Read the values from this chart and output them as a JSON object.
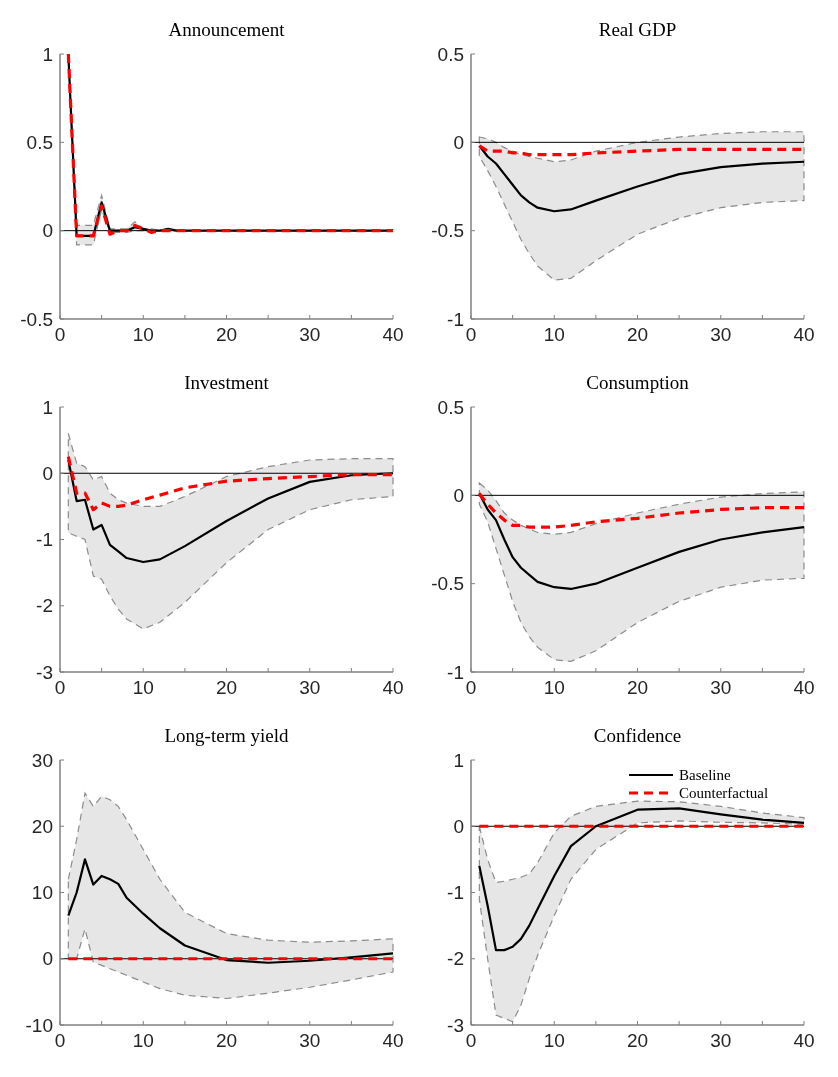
{
  "chart_data": [
    {
      "type": "line",
      "title": "Announcement",
      "xlim": [
        0,
        40
      ],
      "ylim": [
        -0.5,
        1
      ],
      "xticks": [
        0,
        {
          "value": 5,
          "label": null
        },
        10,
        {
          "value": 15,
          "label": null
        },
        20,
        {
          "value": 25,
          "label": null
        },
        30,
        {
          "value": 35,
          "label": null
        },
        40
      ],
      "yticks": [
        -0.5,
        0,
        0.5,
        1
      ],
      "legend": false,
      "ref_lines": [
        {
          "axis": "y",
          "value": 0,
          "color": "#000000"
        }
      ],
      "x": [
        1,
        2,
        3,
        4,
        5,
        6,
        7,
        8,
        9,
        10,
        11,
        12,
        13,
        14,
        15,
        20,
        25,
        30,
        35,
        40
      ],
      "series": [
        {
          "color": "#000000",
          "line_style": "solid",
          "values": [
            1,
            -0.03,
            -0.03,
            -0.03,
            0.16,
            0,
            0,
            0,
            0.02,
            0.01,
            0,
            0,
            0.01,
            0,
            0,
            0,
            0,
            0,
            0,
            0
          ],
          "lower": [
            1,
            -0.08,
            -0.08,
            -0.08,
            0.12,
            -0.01,
            -0.01,
            -0.01,
            0,
            0,
            0,
            0,
            0,
            0,
            0,
            0,
            0,
            0,
            0,
            0
          ],
          "upper": [
            1,
            0.03,
            0.03,
            0.03,
            0.2,
            0.01,
            0.01,
            0.01,
            0.05,
            0.01,
            0.01,
            0,
            0.01,
            0,
            0,
            0,
            0,
            0,
            0,
            0
          ]
        },
        {
          "color": "#ff0000",
          "line_style": "dashed",
          "values": [
            1,
            -0.03,
            -0.03,
            -0.03,
            0.14,
            -0.02,
            0,
            0,
            0.03,
            0.01,
            -0.01,
            0,
            0,
            0,
            0,
            0,
            0,
            0,
            0,
            0
          ]
        }
      ]
    },
    {
      "type": "line",
      "title": "Real GDP",
      "xlim": [
        0,
        40
      ],
      "ylim": [
        -1,
        0.5
      ],
      "xticks": [
        0,
        {
          "value": 5,
          "label": null
        },
        10,
        {
          "value": 15,
          "label": null
        },
        20,
        {
          "value": 25,
          "label": null
        },
        30,
        {
          "value": 35,
          "label": null
        },
        40
      ],
      "yticks": [
        -1,
        -0.5,
        0,
        0.5
      ],
      "legend": false,
      "ref_lines": [
        {
          "axis": "y",
          "value": 0,
          "color": "#000000"
        }
      ],
      "x": [
        1,
        2,
        3,
        4,
        5,
        6,
        7,
        8,
        10,
        12,
        15,
        20,
        25,
        30,
        35,
        40
      ],
      "series": [
        {
          "color": "#000000",
          "line_style": "solid",
          "values": [
            -0.02,
            -0.08,
            -0.12,
            -0.18,
            -0.24,
            -0.3,
            -0.34,
            -0.37,
            -0.39,
            -0.38,
            -0.33,
            -0.25,
            -0.18,
            -0.14,
            -0.12,
            -0.11
          ],
          "lower": [
            -0.08,
            -0.16,
            -0.25,
            -0.35,
            -0.45,
            -0.55,
            -0.63,
            -0.7,
            -0.78,
            -0.77,
            -0.67,
            -0.52,
            -0.43,
            -0.37,
            -0.34,
            -0.33
          ],
          "upper": [
            0.03,
            0.02,
            0,
            -0.03,
            -0.05,
            -0.07,
            -0.08,
            -0.09,
            -0.11,
            -0.1,
            -0.05,
            0,
            0.03,
            0.05,
            0.06,
            0.06
          ]
        },
        {
          "color": "#ff0000",
          "line_style": "dashed",
          "values": [
            -0.02,
            -0.05,
            -0.05,
            -0.05,
            -0.06,
            -0.06,
            -0.07,
            -0.07,
            -0.07,
            -0.07,
            -0.06,
            -0.05,
            -0.04,
            -0.04,
            -0.04,
            -0.04
          ]
        }
      ]
    },
    {
      "type": "line",
      "title": "Investment",
      "xlim": [
        0,
        40
      ],
      "ylim": [
        -3,
        1
      ],
      "xticks": [
        0,
        {
          "value": 5,
          "label": null
        },
        10,
        {
          "value": 15,
          "label": null
        },
        20,
        {
          "value": 25,
          "label": null
        },
        30,
        {
          "value": 35,
          "label": null
        },
        40
      ],
      "yticks": [
        -3,
        -2,
        -1,
        0,
        1
      ],
      "legend": false,
      "ref_lines": [
        {
          "axis": "y",
          "value": 0,
          "color": "#000000"
        }
      ],
      "x": [
        1,
        2,
        3,
        4,
        5,
        6,
        7,
        8,
        10,
        12,
        15,
        20,
        25,
        30,
        35,
        40
      ],
      "series": [
        {
          "color": "#000000",
          "line_style": "solid",
          "values": [
            0.2,
            -0.42,
            -0.4,
            -0.85,
            -0.78,
            -1.08,
            -1.18,
            -1.28,
            -1.34,
            -1.3,
            -1.1,
            -0.72,
            -0.38,
            -0.13,
            -0.03,
            0
          ],
          "lower": [
            -0.9,
            -0.95,
            -1,
            -1.55,
            -1.6,
            -1.85,
            -2.05,
            -2.2,
            -2.35,
            -2.25,
            -1.95,
            -1.35,
            -0.85,
            -0.55,
            -0.4,
            -0.35
          ],
          "upper": [
            0.6,
            0.15,
            0.1,
            -0.1,
            -0.05,
            -0.3,
            -0.4,
            -0.45,
            -0.5,
            -0.5,
            -0.35,
            -0.05,
            0.1,
            0.2,
            0.22,
            0.22
          ]
        },
        {
          "color": "#ff0000",
          "line_style": "dashed",
          "values": [
            0.25,
            -0.3,
            -0.3,
            -0.55,
            -0.45,
            -0.5,
            -0.5,
            -0.48,
            -0.4,
            -0.33,
            -0.22,
            -0.12,
            -0.08,
            -0.05,
            -0.02,
            -0.02
          ]
        }
      ]
    },
    {
      "type": "line",
      "title": "Consumption",
      "xlim": [
        0,
        40
      ],
      "ylim": [
        -1,
        0.5
      ],
      "xticks": [
        0,
        {
          "value": 5,
          "label": null
        },
        10,
        {
          "value": 15,
          "label": null
        },
        20,
        {
          "value": 25,
          "label": null
        },
        30,
        {
          "value": 35,
          "label": null
        },
        40
      ],
      "yticks": [
        -1,
        -0.5,
        0,
        0.5
      ],
      "legend": false,
      "ref_lines": [
        {
          "axis": "y",
          "value": 0,
          "color": "#000000"
        }
      ],
      "x": [
        1,
        2,
        3,
        4,
        5,
        6,
        7,
        8,
        10,
        12,
        15,
        20,
        25,
        30,
        35,
        40
      ],
      "series": [
        {
          "color": "#000000",
          "line_style": "solid",
          "values": [
            0.01,
            -0.08,
            -0.14,
            -0.25,
            -0.35,
            -0.41,
            -0.45,
            -0.49,
            -0.52,
            -0.53,
            -0.5,
            -0.41,
            -0.32,
            -0.25,
            -0.21,
            -0.18
          ],
          "lower": [
            -0.05,
            -0.15,
            -0.3,
            -0.45,
            -0.6,
            -0.72,
            -0.8,
            -0.86,
            -0.93,
            -0.94,
            -0.88,
            -0.72,
            -0.6,
            -0.52,
            -0.48,
            -0.47
          ],
          "upper": [
            0.07,
            0.03,
            -0.03,
            -0.1,
            -0.14,
            -0.17,
            -0.19,
            -0.21,
            -0.22,
            -0.21,
            -0.16,
            -0.1,
            -0.05,
            -0.01,
            0.01,
            0.02
          ]
        },
        {
          "color": "#ff0000",
          "line_style": "dashed",
          "values": [
            0.01,
            -0.05,
            -0.1,
            -0.14,
            -0.17,
            -0.17,
            -0.18,
            -0.18,
            -0.18,
            -0.17,
            -0.15,
            -0.13,
            -0.1,
            -0.08,
            -0.07,
            -0.07
          ]
        }
      ]
    },
    {
      "type": "line",
      "title": "Long-term yield",
      "xlim": [
        0,
        40
      ],
      "ylim": [
        -10,
        30
      ],
      "xticks": [
        0,
        {
          "value": 5,
          "label": null
        },
        10,
        {
          "value": 15,
          "label": null
        },
        20,
        {
          "value": 25,
          "label": null
        },
        30,
        {
          "value": 35,
          "label": null
        },
        40
      ],
      "yticks": [
        -10,
        0,
        10,
        20,
        30
      ],
      "legend": false,
      "ref_lines": [
        {
          "axis": "y",
          "value": 0,
          "color": "#000000"
        }
      ],
      "x": [
        1,
        2,
        3,
        4,
        5,
        6,
        7,
        8,
        10,
        12,
        15,
        20,
        25,
        30,
        35,
        40
      ],
      "series": [
        {
          "color": "#000000",
          "line_style": "solid",
          "values": [
            6.5,
            10,
            15,
            11.2,
            12.5,
            12,
            11.3,
            9.2,
            6.8,
            4.6,
            2,
            -0.2,
            -0.6,
            -0.3,
            0.2,
            0.8
          ],
          "lower": [
            0,
            0,
            4.5,
            -0.5,
            -1,
            -1.5,
            -2,
            -2.5,
            -3.5,
            -4.5,
            -5.5,
            -6,
            -5.2,
            -4.3,
            -3.2,
            -2
          ],
          "upper": [
            12,
            18,
            25,
            23,
            24.5,
            24,
            23,
            21,
            16.5,
            12,
            7,
            3.8,
            2.8,
            2.5,
            2.7,
            3
          ]
        },
        {
          "color": "#ff0000",
          "line_style": "dashed",
          "values": [
            0,
            0,
            0,
            0,
            0,
            0,
            0,
            0,
            0,
            0,
            0,
            0,
            0,
            0,
            0,
            0
          ]
        }
      ]
    },
    {
      "type": "line",
      "title": "Confidence",
      "xlim": [
        0,
        40
      ],
      "ylim": [
        -3,
        1
      ],
      "xticks": [
        0,
        {
          "value": 5,
          "label": null
        },
        10,
        {
          "value": 15,
          "label": null
        },
        20,
        {
          "value": 25,
          "label": null
        },
        30,
        {
          "value": 35,
          "label": null
        },
        40
      ],
      "yticks": [
        -3,
        -2,
        -1,
        0,
        1
      ],
      "legend": "top right",
      "ref_lines": [
        {
          "axis": "y",
          "value": 0,
          "color": "#000000"
        }
      ],
      "x": [
        1,
        2,
        3,
        4,
        5,
        6,
        7,
        8,
        10,
        12,
        15,
        20,
        25,
        30,
        35,
        40
      ],
      "series": [
        {
          "name": "Baseline",
          "color": "#000000",
          "line_style": "solid",
          "values": [
            -0.6,
            -1.2,
            -1.87,
            -1.87,
            -1.82,
            -1.7,
            -1.5,
            -1.25,
            -0.75,
            -0.3,
            0,
            0.25,
            0.27,
            0.18,
            0.1,
            0.05
          ],
          "lower": [
            -1.1,
            -2,
            -2.85,
            -2.9,
            -2.95,
            -2.7,
            -2.3,
            -1.95,
            -1.35,
            -0.8,
            -0.35,
            0.05,
            0.08,
            0.06,
            0.05,
            0.03
          ],
          "upper": [
            0,
            -0.5,
            -0.85,
            -0.83,
            -0.8,
            -0.77,
            -0.72,
            -0.55,
            -0.1,
            0.15,
            0.3,
            0.38,
            0.37,
            0.3,
            0.2,
            0.13
          ]
        },
        {
          "name": "Counterfactual",
          "color": "#ff0000",
          "line_style": "dashed",
          "values": [
            0,
            0,
            0,
            0,
            0,
            0,
            0,
            0,
            0,
            0,
            0,
            0,
            0,
            0,
            0,
            0
          ]
        }
      ]
    }
  ]
}
